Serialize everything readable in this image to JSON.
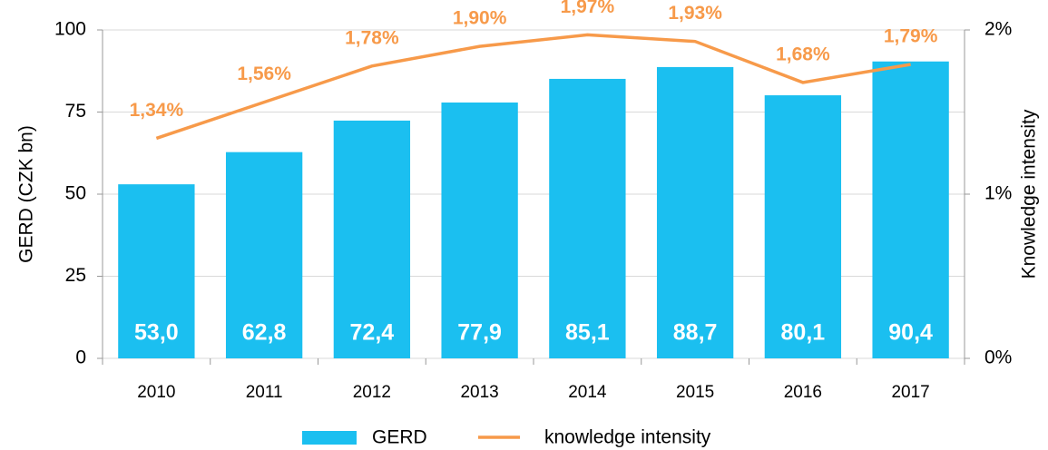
{
  "chart_data": {
    "type": "bar_line",
    "categories": [
      "2010",
      "2011",
      "2012",
      "2013",
      "2014",
      "2015",
      "2016",
      "2017"
    ],
    "series": [
      {
        "name": "GERD",
        "type": "bar",
        "color": "#1bbff0",
        "values": [
          53.0,
          62.8,
          72.4,
          77.9,
          85.1,
          88.7,
          80.1,
          90.4
        ],
        "value_labels": [
          "53,0",
          "62,8",
          "72,4",
          "77,9",
          "85,1",
          "88,7",
          "80,1",
          "90,4"
        ]
      },
      {
        "name": "knowledge intensity",
        "type": "line",
        "axis": "y2",
        "color": "#f79a4a",
        "values": [
          1.34,
          1.56,
          1.78,
          1.9,
          1.97,
          1.93,
          1.68,
          1.79
        ],
        "value_labels": [
          "1,34%",
          "1,56%",
          "1,78%",
          "1,90%",
          "1,97%",
          "1,93%",
          "1,68%",
          "1,79%"
        ]
      }
    ],
    "ylabel": "GERD (CZK bn)",
    "y2label": "Knowledge intensity",
    "ylim": [
      0,
      100
    ],
    "yticks": [
      0,
      25,
      50,
      75,
      100
    ],
    "y2lim": [
      0,
      2
    ],
    "y2ticks": [
      {
        "value": 0,
        "label": "0%"
      },
      {
        "value": 1,
        "label": "1%"
      },
      {
        "value": 2,
        "label": "2%"
      }
    ],
    "grid": true,
    "legend": "bottom"
  }
}
